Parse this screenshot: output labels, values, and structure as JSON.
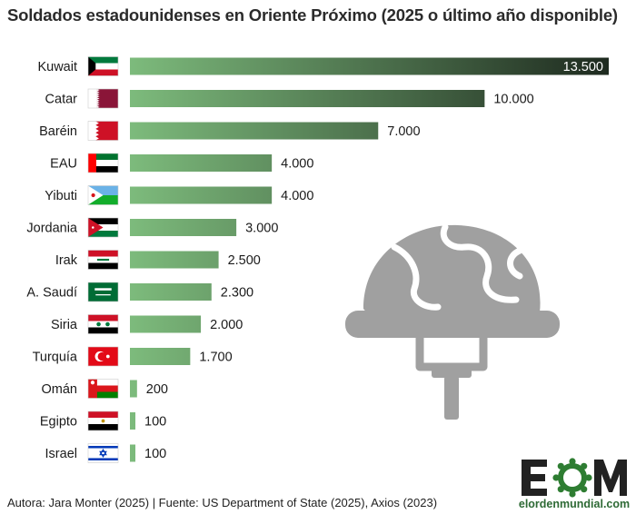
{
  "title": "Soldados estadounidenses en Oriente Próximo (2025 o último año disponible)",
  "footer": "Autora: Jara Monter (2025) | Fuente: US Department of State (2025), Axios (2023)",
  "logo": {
    "mark": "EOM",
    "site": "elordenmundial.com"
  },
  "colors": {
    "bar_light": "#7dbb7c",
    "bar_dark": "#1e2a1f",
    "helmet": "#a0a0a0",
    "brand": "#2e7d32"
  },
  "chart_data": {
    "type": "bar",
    "orientation": "horizontal",
    "categories": [
      "Kuwait",
      "Catar",
      "Baréin",
      "EAU",
      "Yibuti",
      "Jordania",
      "Irak",
      "A. Saudí",
      "Siria",
      "Turquía",
      "Omán",
      "Egipto",
      "Israel"
    ],
    "values": [
      13500,
      10000,
      7000,
      4000,
      4000,
      3000,
      2500,
      2300,
      2000,
      1700,
      200,
      100,
      100
    ],
    "value_labels": [
      "13.500",
      "10.000",
      "7.000",
      "4.000",
      "4.000",
      "3.000",
      "2.500",
      "2.300",
      "2.000",
      "1.700",
      "200",
      "100",
      "100"
    ],
    "flags": [
      "kuwait-flag",
      "qatar-flag",
      "bahrain-flag",
      "uae-flag",
      "djibouti-flag",
      "jordan-flag",
      "iraq-flag",
      "saudi-arabia-flag",
      "syria-flag",
      "turkey-flag",
      "oman-flag",
      "egypt-flag",
      "israel-flag"
    ],
    "xlim": [
      0,
      13500
    ],
    "grid": false,
    "legend": "none"
  }
}
